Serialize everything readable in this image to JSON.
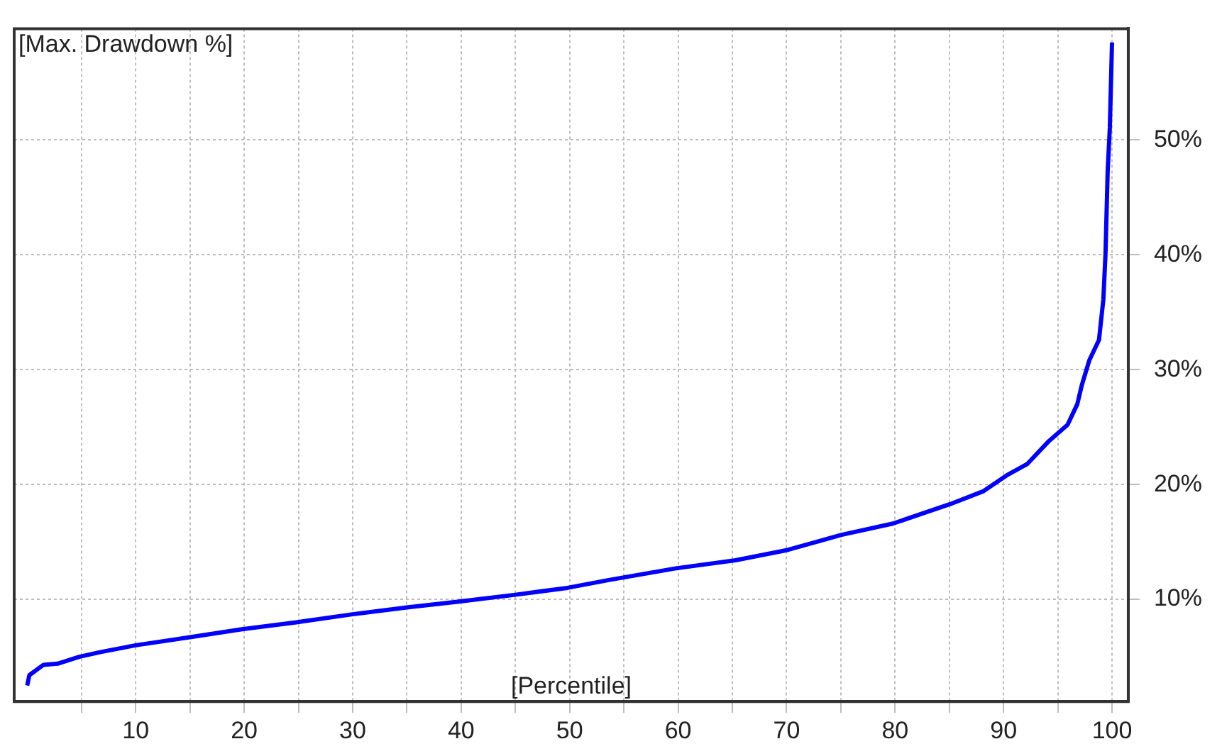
{
  "chart_data": {
    "type": "line",
    "xlabel": "[Percentile]",
    "ylabel": "[Max. Drawdown %]",
    "xlim": [
      -1.2,
      101.5
    ],
    "ylim": [
      1.1,
      59.7
    ],
    "xticks": [
      {
        "value": 5,
        "label": null
      },
      10,
      {
        "value": 15,
        "label": null
      },
      20,
      {
        "value": 25,
        "label": null
      },
      30,
      {
        "value": 35,
        "label": null
      },
      40,
      {
        "value": 45,
        "label": null
      },
      50,
      {
        "value": 55,
        "label": null
      },
      60,
      {
        "value": 65,
        "label": null
      },
      70,
      {
        "value": 75,
        "label": null
      },
      80,
      {
        "value": 85,
        "label": null
      },
      90,
      {
        "value": 95,
        "label": null
      },
      100
    ],
    "yticks": [
      {
        "value": 10,
        "label": "10%"
      },
      {
        "value": 20,
        "label": "20%"
      },
      {
        "value": 30,
        "label": "30%"
      },
      {
        "value": 40,
        "label": "40%"
      },
      {
        "value": 50,
        "label": "50%"
      }
    ],
    "grid": true,
    "series": [
      {
        "color": "#0000ff",
        "x": [
          0,
          0.2,
          1.5,
          2.8,
          4.8,
          6.7,
          10,
          15,
          19.8,
          24.8,
          30,
          35,
          39.8,
          45,
          49.8,
          53.7,
          59.8,
          65.3,
          70.1,
          75,
          79.8,
          85.1,
          88.1,
          90.3,
          92.2,
          94.2,
          95.9,
          96.8,
          97.2,
          97.9,
          98.8,
          99.2,
          99.4,
          99.6,
          99.8,
          100
        ],
        "values": [
          2.5,
          3.4,
          4.3,
          4.4,
          5.0,
          5.4,
          6.0,
          6.7,
          7.4,
          8.0,
          8.7,
          9.3,
          9.8,
          10.4,
          11.0,
          11.7,
          12.7,
          13.4,
          14.3,
          15.6,
          16.6,
          18.3,
          19.4,
          20.8,
          21.8,
          23.8,
          25.2,
          27.0,
          28.6,
          30.8,
          32.6,
          36.1,
          40.1,
          47.3,
          51.1,
          58.5
        ]
      }
    ]
  }
}
